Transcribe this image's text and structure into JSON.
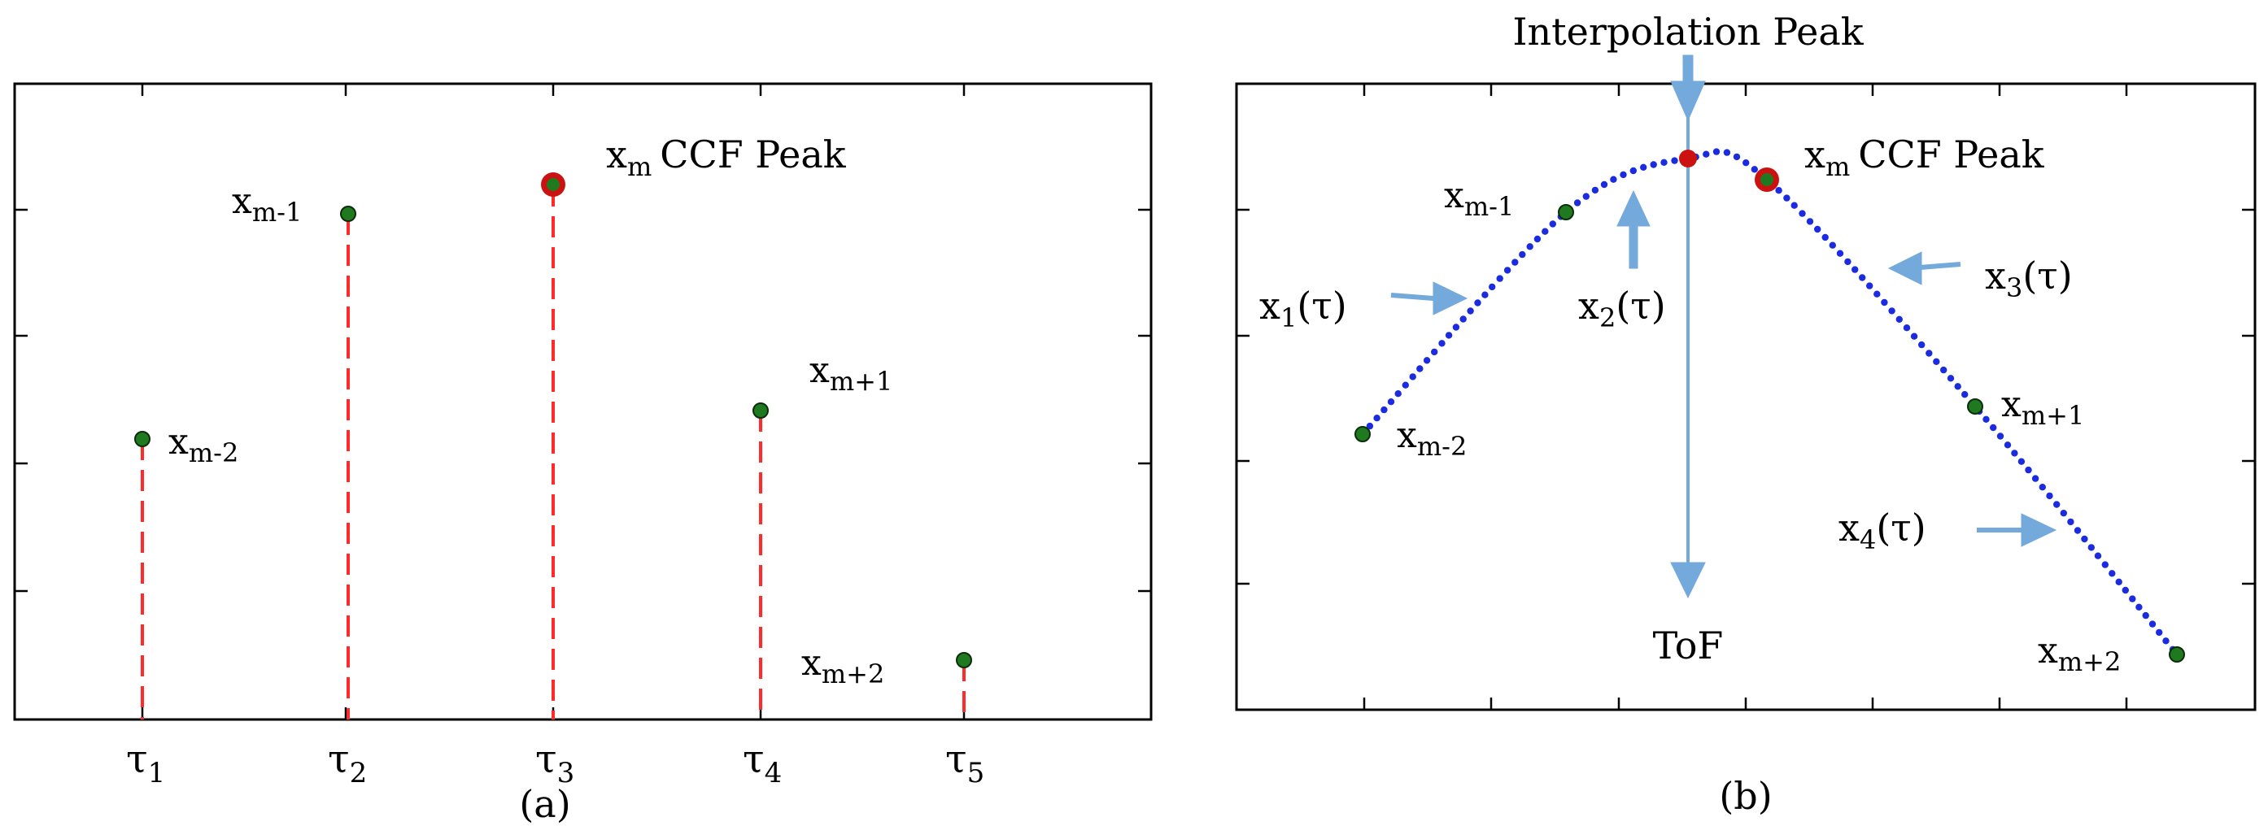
{
  "panel_a": {
    "caption": "(a)",
    "peak_label": {
      "var": "x",
      "sub": "m",
      "text": "CCF Peak"
    },
    "tau_labels": [
      {
        "var": "τ",
        "sub": "1"
      },
      {
        "var": "τ",
        "sub": "2"
      },
      {
        "var": "τ",
        "sub": "3"
      },
      {
        "var": "τ",
        "sub": "4"
      },
      {
        "var": "τ",
        "sub": "5"
      }
    ],
    "point_labels": [
      {
        "var": "x",
        "sub": "m-2"
      },
      {
        "var": "x",
        "sub": "m-1"
      },
      {
        "var": "x",
        "sub": "m+1"
      },
      {
        "var": "x",
        "sub": "m+2"
      }
    ]
  },
  "panel_b": {
    "caption": "(b)",
    "interp_peak_label": "Interpolation Peak",
    "tof_label": "ToF",
    "peak_label": {
      "var": "x",
      "sub": "m",
      "text": "CCF Peak"
    },
    "point_labels": [
      {
        "var": "x",
        "sub": "m-1"
      },
      {
        "var": "x",
        "sub": "m-2"
      },
      {
        "var": "x",
        "sub": "m+1"
      },
      {
        "var": "x",
        "sub": "m+2"
      }
    ],
    "curve_labels": [
      {
        "var": "x",
        "sub": "1",
        "arg": "(τ)"
      },
      {
        "var": "x",
        "sub": "2",
        "arg": "(τ)"
      },
      {
        "var": "x",
        "sub": "3",
        "arg": "(τ)"
      },
      {
        "var": "x",
        "sub": "4",
        "arg": "(τ)"
      }
    ]
  },
  "colors": {
    "stem": "#ff2a2a",
    "point_fill": "#1f7a1f",
    "peak_ring": "#cc1111",
    "curve_dots": "#1b2be0",
    "arrow": "#74a9dc"
  }
}
